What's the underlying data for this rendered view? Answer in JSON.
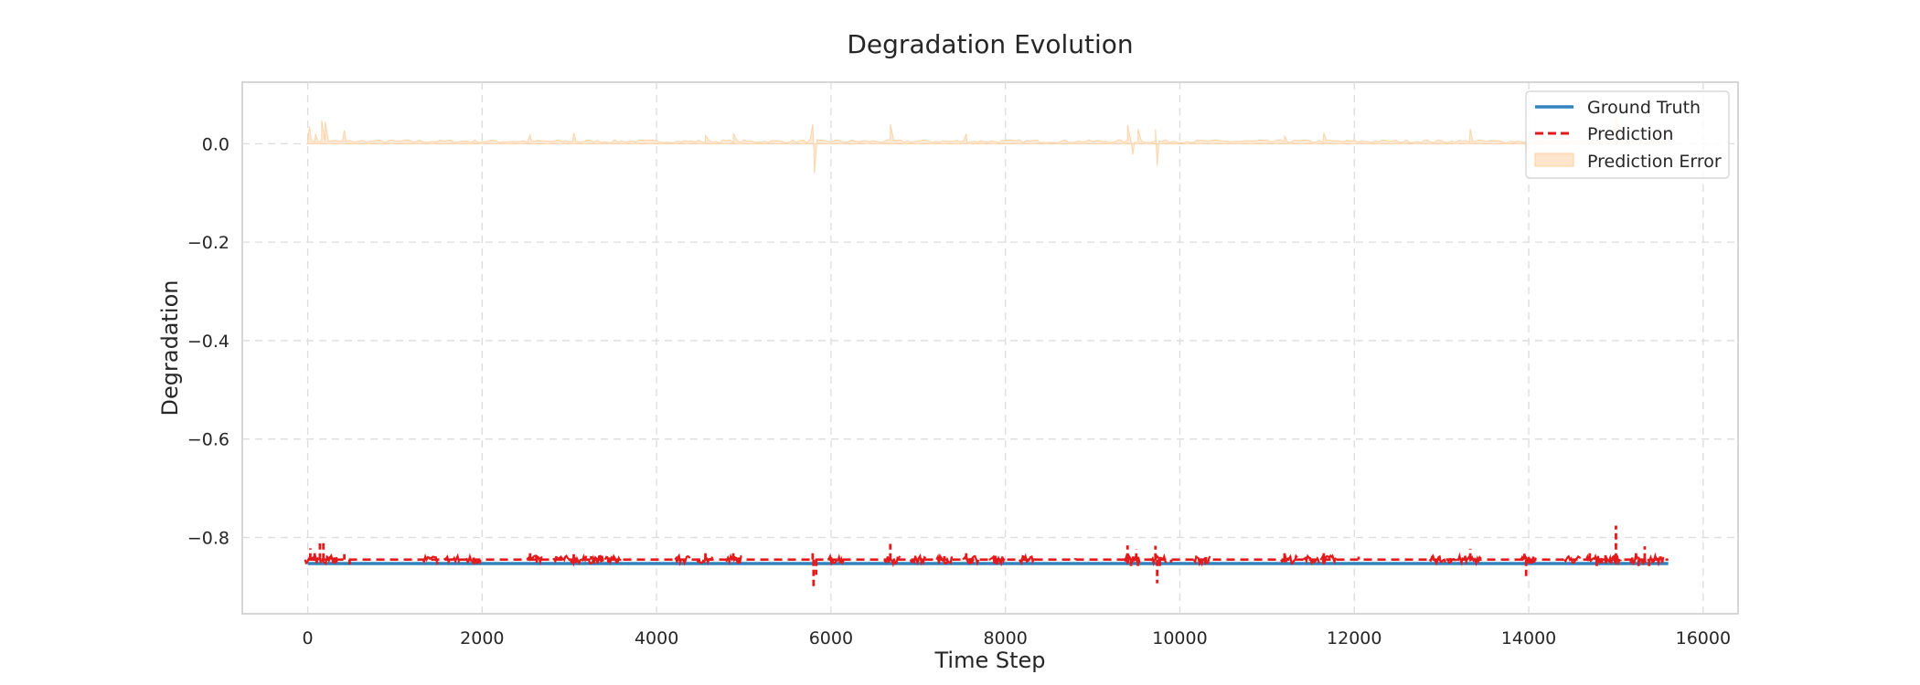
{
  "chart_data": {
    "type": "line",
    "title": "Degradation Evolution",
    "xlabel": "Time Step",
    "ylabel": "Degradation",
    "xlim": [
      -750,
      16400
    ],
    "ylim": [
      -0.955,
      0.125
    ],
    "x_ticks": [
      0,
      2000,
      4000,
      6000,
      8000,
      10000,
      12000,
      14000,
      16000
    ],
    "x_tick_labels": [
      "0",
      "2000",
      "4000",
      "6000",
      "8000",
      "10000",
      "12000",
      "14000",
      "16000"
    ],
    "y_ticks": [
      0.0,
      -0.2,
      -0.4,
      -0.6,
      -0.8
    ],
    "y_tick_labels": [
      "0.0",
      "−0.2",
      "−0.4",
      "−0.6",
      "−0.8"
    ],
    "grid": true,
    "legend_position": "top-right",
    "n_points": 15600,
    "series": [
      {
        "name": "Ground Truth",
        "kind": "line",
        "style": "solid",
        "color": "#3182bd",
        "x": [
          0,
          15600
        ],
        "y": [
          -0.853,
          -0.853
        ]
      },
      {
        "name": "Prediction",
        "kind": "line",
        "style": "dashed",
        "color": "#e31a1c",
        "baseline": -0.845,
        "spikes": [
          {
            "x": 30,
            "y": -0.822
          },
          {
            "x": 80,
            "y": -0.83
          },
          {
            "x": 140,
            "y": -0.812
          },
          {
            "x": 180,
            "y": -0.806
          },
          {
            "x": 260,
            "y": -0.838
          },
          {
            "x": 330,
            "y": -0.851
          },
          {
            "x": 420,
            "y": -0.834
          },
          {
            "x": 480,
            "y": -0.855
          },
          {
            "x": 1400,
            "y": -0.84
          },
          {
            "x": 1600,
            "y": -0.842
          },
          {
            "x": 1900,
            "y": -0.841
          },
          {
            "x": 2550,
            "y": -0.831
          },
          {
            "x": 2850,
            "y": -0.838
          },
          {
            "x": 3050,
            "y": -0.834
          },
          {
            "x": 3250,
            "y": -0.838
          },
          {
            "x": 3500,
            "y": -0.84
          },
          {
            "x": 4250,
            "y": -0.841
          },
          {
            "x": 4560,
            "y": -0.832
          },
          {
            "x": 4880,
            "y": -0.829
          },
          {
            "x": 5790,
            "y": -0.826
          },
          {
            "x": 5800,
            "y": -0.905
          },
          {
            "x": 5830,
            "y": -0.876
          },
          {
            "x": 6000,
            "y": -0.84
          },
          {
            "x": 6680,
            "y": -0.813
          },
          {
            "x": 6720,
            "y": -0.852
          },
          {
            "x": 7000,
            "y": -0.848
          },
          {
            "x": 7300,
            "y": -0.838
          },
          {
            "x": 7550,
            "y": -0.83
          },
          {
            "x": 7620,
            "y": -0.853
          },
          {
            "x": 7900,
            "y": -0.842
          },
          {
            "x": 8200,
            "y": -0.843
          },
          {
            "x": 8800,
            "y": -0.842
          },
          {
            "x": 9400,
            "y": -0.816
          },
          {
            "x": 9440,
            "y": -0.865
          },
          {
            "x": 9500,
            "y": -0.824
          },
          {
            "x": 9520,
            "y": -0.86
          },
          {
            "x": 9720,
            "y": -0.817
          },
          {
            "x": 9740,
            "y": -0.893
          },
          {
            "x": 9770,
            "y": -0.86
          },
          {
            "x": 9900,
            "y": -0.851
          },
          {
            "x": 10300,
            "y": -0.84
          },
          {
            "x": 11200,
            "y": -0.832
          },
          {
            "x": 11450,
            "y": -0.839
          },
          {
            "x": 11650,
            "y": -0.832
          },
          {
            "x": 12050,
            "y": -0.839
          },
          {
            "x": 12900,
            "y": -0.84
          },
          {
            "x": 13100,
            "y": -0.842
          },
          {
            "x": 13330,
            "y": -0.823
          },
          {
            "x": 13950,
            "y": -0.833
          },
          {
            "x": 13970,
            "y": -0.882
          },
          {
            "x": 14400,
            "y": -0.847
          },
          {
            "x": 14700,
            "y": -0.83
          },
          {
            "x": 14780,
            "y": -0.86
          },
          {
            "x": 14880,
            "y": -0.836
          },
          {
            "x": 15000,
            "y": -0.776
          },
          {
            "x": 15050,
            "y": -0.848
          },
          {
            "x": 15230,
            "y": -0.826
          },
          {
            "x": 15260,
            "y": -0.863
          },
          {
            "x": 15330,
            "y": -0.818
          },
          {
            "x": 15380,
            "y": -0.86
          },
          {
            "x": 15500,
            "y": -0.842
          }
        ]
      },
      {
        "name": "Prediction Error",
        "kind": "area",
        "color": "#fdd0a2",
        "baseline": 0.0,
        "typical_band": [
          0.0,
          0.008
        ],
        "spikes": [
          {
            "x": 20,
            "y": 0.035
          },
          {
            "x": 90,
            "y": 0.02
          },
          {
            "x": 160,
            "y": 0.048
          },
          {
            "x": 200,
            "y": 0.045
          },
          {
            "x": 420,
            "y": 0.027
          },
          {
            "x": 2550,
            "y": 0.018
          },
          {
            "x": 3050,
            "y": 0.022
          },
          {
            "x": 4560,
            "y": 0.017
          },
          {
            "x": 4880,
            "y": 0.021
          },
          {
            "x": 5790,
            "y": 0.04
          },
          {
            "x": 5810,
            "y": -0.06
          },
          {
            "x": 6680,
            "y": 0.04
          },
          {
            "x": 7550,
            "y": 0.02
          },
          {
            "x": 9400,
            "y": 0.038
          },
          {
            "x": 9460,
            "y": -0.022
          },
          {
            "x": 9520,
            "y": 0.03
          },
          {
            "x": 9720,
            "y": 0.03
          },
          {
            "x": 9740,
            "y": -0.045
          },
          {
            "x": 11200,
            "y": 0.015
          },
          {
            "x": 11650,
            "y": 0.022
          },
          {
            "x": 13330,
            "y": 0.03
          },
          {
            "x": 13970,
            "y": -0.02
          },
          {
            "x": 15000,
            "y": 0.06
          }
        ]
      }
    ]
  }
}
